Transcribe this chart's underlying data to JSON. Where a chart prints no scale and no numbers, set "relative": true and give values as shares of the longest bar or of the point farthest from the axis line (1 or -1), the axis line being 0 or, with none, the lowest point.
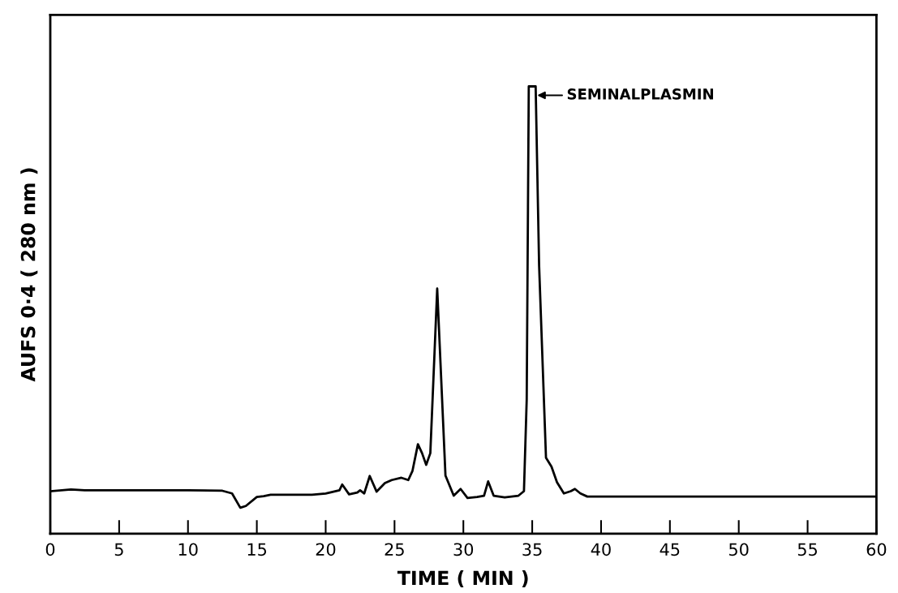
{
  "chart_data": {
    "type": "line",
    "relative": true,
    "xlabel": "TIME ( MIN )",
    "ylabel": "AUFS 0·4 ( 280 nm )",
    "xlim": [
      0,
      60
    ],
    "xticks": [
      0,
      5,
      10,
      15,
      20,
      25,
      30,
      35,
      40,
      45,
      50,
      55,
      60
    ],
    "grid": false,
    "marker": "none",
    "line_style": "solid",
    "annotations": [
      {
        "text": "SEMINALPLASMIN",
        "x": 35.2,
        "y": 0.98
      }
    ],
    "series": [
      {
        "color": "#000000",
        "x": [
          0,
          1.5,
          2.5,
          5,
          10,
          12.5,
          13.2,
          13.8,
          14.2,
          15,
          15.5,
          16,
          19,
          20,
          21,
          21.2,
          21.7,
          22.3,
          22.5,
          22.8,
          23.2,
          23.7,
          24.3,
          24.8,
          25.5,
          26,
          26.3,
          26.7,
          27.0,
          27.3,
          27.6,
          28.1,
          28.7,
          29.3,
          29.8,
          30.3,
          31,
          31.5,
          31.8,
          32.2,
          33,
          34,
          34.4,
          34.6,
          34.75,
          35.25,
          35.5,
          36.0,
          36.4,
          36.8,
          37.3,
          37.8,
          38.1,
          38.5,
          39,
          60
        ],
        "values": [
          0.095,
          0.099,
          0.097,
          0.097,
          0.097,
          0.096,
          0.09,
          0.058,
          0.062,
          0.082,
          0.084,
          0.087,
          0.087,
          0.09,
          0.097,
          0.11,
          0.088,
          0.092,
          0.097,
          0.09,
          0.129,
          0.094,
          0.113,
          0.12,
          0.125,
          0.12,
          0.14,
          0.2,
          0.18,
          0.154,
          0.18,
          0.548,
          0.13,
          0.085,
          0.1,
          0.08,
          0.082,
          0.085,
          0.117,
          0.085,
          0.081,
          0.085,
          0.095,
          0.3,
          1,
          1,
          0.6,
          0.17,
          0.15,
          0.115,
          0.09,
          0.095,
          0.1,
          0.09,
          0.083,
          0.083
        ]
      }
    ]
  }
}
